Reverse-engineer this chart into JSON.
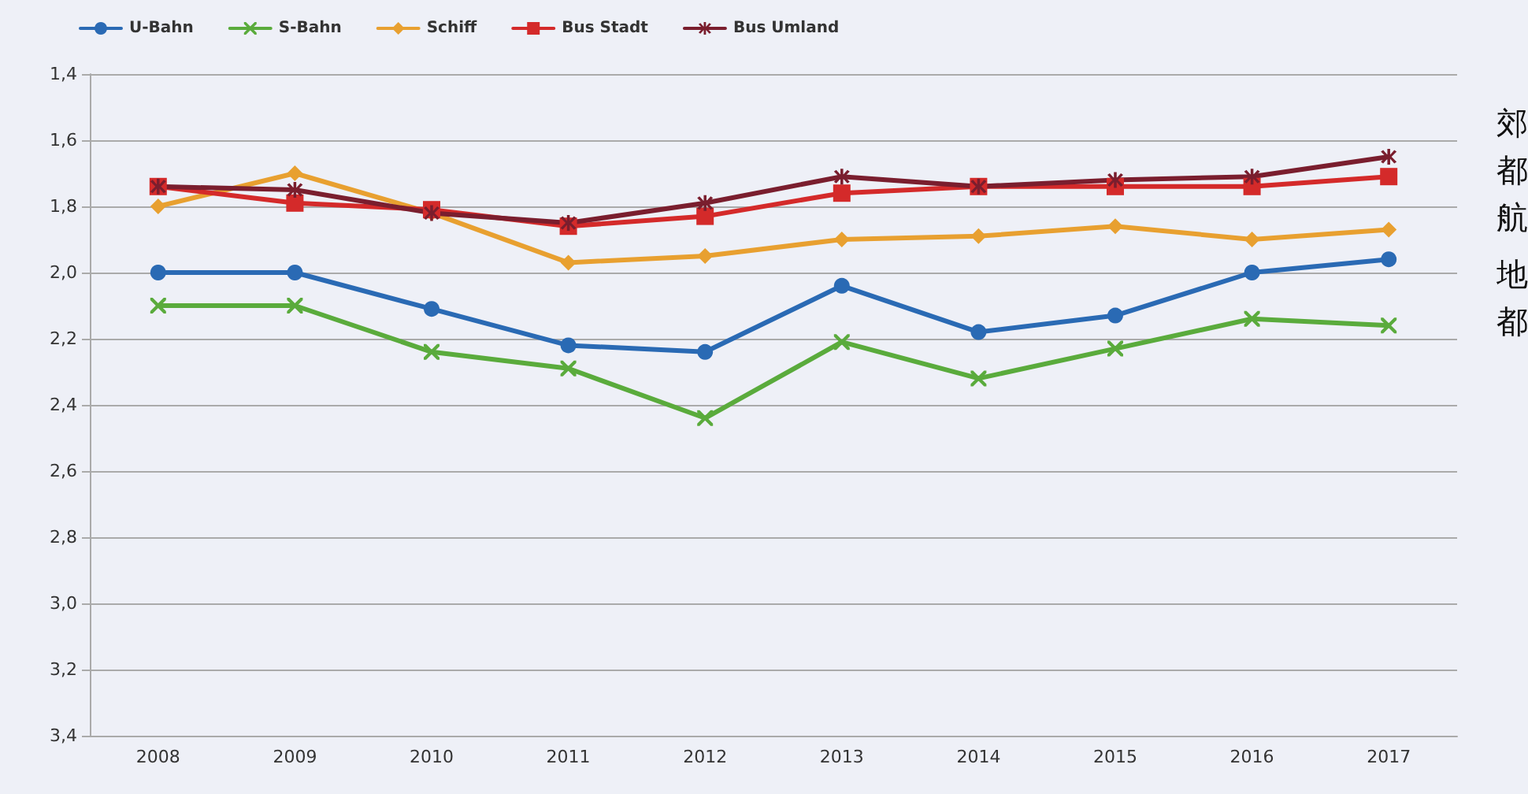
{
  "chart_data": {
    "type": "line",
    "categories": [
      "2008",
      "2009",
      "2010",
      "2011",
      "2012",
      "2013",
      "2014",
      "2015",
      "2016",
      "2017"
    ],
    "series": [
      {
        "name": "U-Bahn",
        "color": "#2a6ab4",
        "marker": "circle",
        "values": [
          2.0,
          2.0,
          2.11,
          2.22,
          2.24,
          2.04,
          2.18,
          2.13,
          2.0,
          1.96
        ]
      },
      {
        "name": "S-Bahn",
        "color": "#5aab3c",
        "marker": "cross",
        "values": [
          2.1,
          2.1,
          2.24,
          2.29,
          2.44,
          2.21,
          2.32,
          2.23,
          2.14,
          2.16
        ]
      },
      {
        "name": "Schiff",
        "color": "#e8a030",
        "marker": "diamond",
        "values": [
          1.8,
          1.7,
          1.82,
          1.97,
          1.95,
          1.9,
          1.89,
          1.86,
          1.9,
          1.87
        ]
      },
      {
        "name": "Bus Stadt",
        "color": "#d42a2a",
        "marker": "square",
        "values": [
          1.74,
          1.79,
          1.81,
          1.86,
          1.83,
          1.76,
          1.74,
          1.74,
          1.74,
          1.71
        ]
      },
      {
        "name": "Bus Umland",
        "color": "#7a1e2e",
        "marker": "star",
        "values": [
          1.74,
          1.75,
          1.82,
          1.85,
          1.79,
          1.71,
          1.74,
          1.72,
          1.71,
          1.65
        ]
      }
    ],
    "ylim": [
      3.4,
      1.4
    ],
    "yticks": [
      {
        "value": 1.4,
        "label": "1,4"
      },
      {
        "value": 1.6,
        "label": "1,6"
      },
      {
        "value": 1.8,
        "label": "1,8"
      },
      {
        "value": 2.0,
        "label": "2,0"
      },
      {
        "value": 2.2,
        "label": "2,2"
      },
      {
        "value": 2.4,
        "label": "2,4"
      },
      {
        "value": 2.6,
        "label": "2,6"
      },
      {
        "value": 2.8,
        "label": "2,8"
      },
      {
        "value": 3.0,
        "label": "3,0"
      },
      {
        "value": 3.2,
        "label": "3,2"
      },
      {
        "value": 3.4,
        "label": "3,4"
      }
    ],
    "grid": "y",
    "legend": "top left",
    "line_style": "solid",
    "annotations": [
      "郊",
      "都",
      "航",
      "地",
      "都"
    ]
  }
}
